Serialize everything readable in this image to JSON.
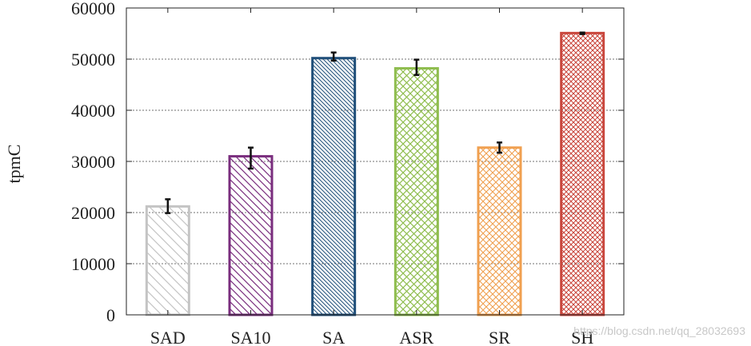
{
  "chart_data": {
    "type": "bar",
    "title": "",
    "xlabel": "",
    "ylabel": "tpmC",
    "ylim": [
      0,
      60000
    ],
    "yticks": [
      0,
      10000,
      20000,
      30000,
      40000,
      50000,
      60000
    ],
    "grid": "horizontal-dashed",
    "categories": [
      "SAD",
      "SA10",
      "SA",
      "ASR",
      "SR",
      "SH"
    ],
    "values": [
      21200,
      31000,
      50200,
      48200,
      32700,
      55100
    ],
    "error_low": [
      19900,
      28600,
      49700,
      46900,
      31700,
      54900
    ],
    "error_high": [
      22600,
      32700,
      51300,
      49900,
      33700,
      55200
    ],
    "colors": [
      "#c4c4c4",
      "#7a2e7e",
      "#1f4e79",
      "#8fbd4f",
      "#f0a050",
      "#c9473d"
    ],
    "patterns": [
      "diagonal-back-sparse",
      "diagonal-back",
      "diagonal-back-dense",
      "crosshatch",
      "crosshatch",
      "crosshatch-dense"
    ]
  },
  "watermark": "https://blog.csdn.net/qq_28032693"
}
